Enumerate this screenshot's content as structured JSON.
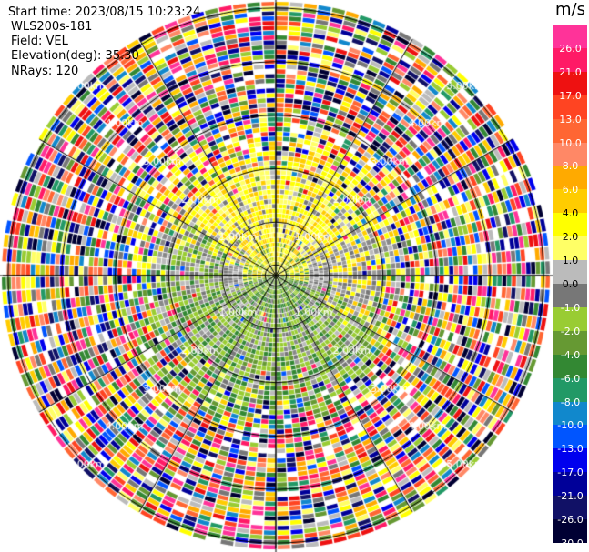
{
  "header": {
    "start_time": "Start time: 2023/08/15 10:23:24",
    "system": "WLS200s-181",
    "field": "Field: VEL",
    "elevation": "Elevation(deg): 35.30",
    "nrays": "NRays: 120"
  },
  "colorbar": {
    "unit": "m/s",
    "segments": [
      {
        "color": "#ff3399",
        "label": "26.0"
      },
      {
        "color": "#ff1a66",
        "label": "21.0"
      },
      {
        "color": "#ee1111",
        "label": "17.0"
      },
      {
        "color": "#ff4422",
        "label": "13.0"
      },
      {
        "color": "#ff6633",
        "label": "10.0"
      },
      {
        "color": "#ff8866",
        "label": "8.0"
      },
      {
        "color": "#ffaa00",
        "label": "6.0"
      },
      {
        "color": "#ffcc00",
        "label": "4.0"
      },
      {
        "color": "#ffff00",
        "label": "2.0"
      },
      {
        "color": "#ffff66",
        "label": "1.0"
      },
      {
        "color": "#bbbbbb",
        "label": "0.0"
      },
      {
        "color": "#777777",
        "label": "-1.0"
      },
      {
        "color": "#99cc33",
        "label": "-2.0"
      },
      {
        "color": "#669933",
        "label": "-4.0"
      },
      {
        "color": "#338833",
        "label": "-6.0"
      },
      {
        "color": "#229966",
        "label": "-8.0"
      },
      {
        "color": "#1188cc",
        "label": "-10.0"
      },
      {
        "color": "#0055ff",
        "label": "-13.0"
      },
      {
        "color": "#0000ee",
        "label": "-17.0"
      },
      {
        "color": "#000099",
        "label": "-21.0"
      },
      {
        "color": "#111166",
        "label": "-26.0"
      },
      {
        "color": "#000033",
        "label": "-30.0"
      }
    ]
  },
  "chart_data": {
    "type": "heatmap",
    "projection": "polar PPI",
    "field": "VEL",
    "units": "m/s",
    "n_rays": 120,
    "elevation_deg": 35.3,
    "range_rings_km": [
      1,
      2,
      3,
      4,
      5
    ],
    "ring_label_text": [
      "1.00km",
      "2.00km",
      "3.00km",
      "4.00km",
      "5.00km"
    ],
    "ring_label_bearings_deg": [
      45,
      135,
      225,
      315
    ],
    "colorbar_ticks": [
      26.0,
      21.0,
      17.0,
      13.0,
      10.0,
      8.0,
      6.0,
      4.0,
      2.0,
      1.0,
      0.0,
      -1.0,
      -2.0,
      -4.0,
      -6.0,
      -8.0,
      -10.0,
      -13.0,
      -17.0,
      -21.0,
      -26.0,
      -30.0
    ],
    "regions": [
      {
        "range_km": [
          0,
          0.6
        ],
        "north": "yellow",
        "south": "green",
        "desc": "near field mixed"
      },
      {
        "range_km": [
          0.6,
          2.3
        ],
        "north": "gray / yellow (+0 to +2 m/s)",
        "south": "gray / green (0 to -4 m/s)"
      },
      {
        "range_km": [
          2.3,
          5.1
        ],
        "pattern": "noise, all colors"
      }
    ]
  }
}
